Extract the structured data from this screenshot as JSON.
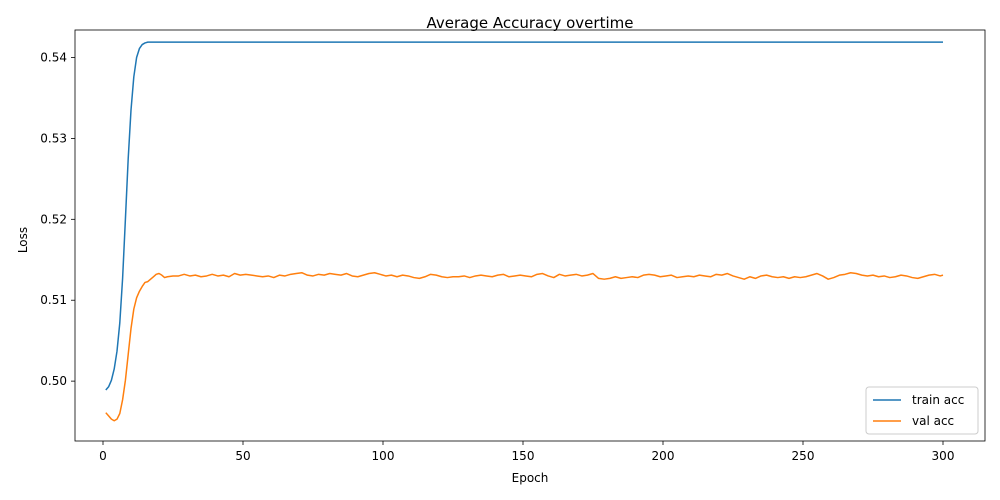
{
  "chart_data": {
    "type": "line",
    "title": "Average Accuracy overtime",
    "xlabel": "Epoch",
    "ylabel": "Loss",
    "xlim": [
      -10,
      315
    ],
    "ylim": [
      0.4926,
      0.5434
    ],
    "xticks": [
      0,
      50,
      100,
      150,
      200,
      250,
      300
    ],
    "yticks": [
      0.5,
      0.51,
      0.52,
      0.53,
      0.54
    ],
    "ytick_labels": [
      "0.50",
      "0.51",
      "0.52",
      "0.53",
      "0.54"
    ],
    "grid": false,
    "legend": "bottom-right",
    "series": [
      {
        "name": "train acc",
        "color": "#1f77b4",
        "points": [
          [
            1,
            0.4989
          ],
          [
            2,
            0.4993
          ],
          [
            3,
            0.5001
          ],
          [
            4,
            0.5015
          ],
          [
            5,
            0.5037
          ],
          [
            6,
            0.5072
          ],
          [
            7,
            0.5127
          ],
          [
            8,
            0.52
          ],
          [
            9,
            0.5275
          ],
          [
            10,
            0.5335
          ],
          [
            11,
            0.5376
          ],
          [
            12,
            0.54
          ],
          [
            13,
            0.5411
          ],
          [
            14,
            0.5416
          ],
          [
            15,
            0.5418
          ],
          [
            16,
            0.5419
          ],
          [
            300,
            0.5419
          ]
        ]
      },
      {
        "name": "val acc",
        "color": "#ff7f0e",
        "points": [
          [
            1,
            0.4961
          ],
          [
            2,
            0.4957
          ],
          [
            3,
            0.4953
          ],
          [
            4,
            0.4951
          ],
          [
            5,
            0.4953
          ],
          [
            6,
            0.496
          ],
          [
            7,
            0.4977
          ],
          [
            8,
            0.5001
          ],
          [
            9,
            0.5033
          ],
          [
            10,
            0.5065
          ],
          [
            11,
            0.5089
          ],
          [
            12,
            0.5103
          ],
          [
            13,
            0.5111
          ],
          [
            14,
            0.5117
          ],
          [
            15,
            0.5122
          ],
          [
            16,
            0.5123
          ],
          [
            17,
            0.5126
          ],
          [
            18,
            0.5129
          ],
          [
            19,
            0.5132
          ],
          [
            20,
            0.5133
          ],
          [
            21,
            0.5131
          ],
          [
            22,
            0.5128
          ],
          [
            23,
            0.5129
          ],
          [
            25,
            0.513
          ],
          [
            27,
            0.513
          ],
          [
            29,
            0.5132
          ],
          [
            31,
            0.513
          ],
          [
            33,
            0.5131
          ],
          [
            35,
            0.5129
          ],
          [
            37,
            0.513
          ],
          [
            39,
            0.5132
          ],
          [
            41,
            0.513
          ],
          [
            43,
            0.5131
          ],
          [
            45,
            0.5129
          ],
          [
            47,
            0.5133
          ],
          [
            49,
            0.5131
          ],
          [
            51,
            0.5132
          ],
          [
            53,
            0.5131
          ],
          [
            55,
            0.513
          ],
          [
            57,
            0.5129
          ],
          [
            59,
            0.513
          ],
          [
            61,
            0.5128
          ],
          [
            63,
            0.5131
          ],
          [
            65,
            0.513
          ],
          [
            67,
            0.5132
          ],
          [
            69,
            0.5133
          ],
          [
            71,
            0.5134
          ],
          [
            73,
            0.5131
          ],
          [
            75,
            0.513
          ],
          [
            77,
            0.5132
          ],
          [
            79,
            0.5131
          ],
          [
            81,
            0.5133
          ],
          [
            83,
            0.5132
          ],
          [
            85,
            0.5131
          ],
          [
            87,
            0.5133
          ],
          [
            89,
            0.513
          ],
          [
            91,
            0.5129
          ],
          [
            93,
            0.5131
          ],
          [
            95,
            0.5133
          ],
          [
            97,
            0.5134
          ],
          [
            99,
            0.5132
          ],
          [
            101,
            0.513
          ],
          [
            103,
            0.5131
          ],
          [
            105,
            0.5129
          ],
          [
            107,
            0.5131
          ],
          [
            109,
            0.513
          ],
          [
            111,
            0.5128
          ],
          [
            113,
            0.5127
          ],
          [
            115,
            0.5129
          ],
          [
            117,
            0.5132
          ],
          [
            119,
            0.5131
          ],
          [
            121,
            0.5129
          ],
          [
            123,
            0.5128
          ],
          [
            125,
            0.5129
          ],
          [
            127,
            0.5129
          ],
          [
            129,
            0.513
          ],
          [
            131,
            0.5128
          ],
          [
            133,
            0.513
          ],
          [
            135,
            0.5131
          ],
          [
            137,
            0.513
          ],
          [
            139,
            0.5129
          ],
          [
            141,
            0.5131
          ],
          [
            143,
            0.5132
          ],
          [
            145,
            0.5129
          ],
          [
            147,
            0.513
          ],
          [
            149,
            0.5131
          ],
          [
            151,
            0.513
          ],
          [
            153,
            0.5129
          ],
          [
            155,
            0.5132
          ],
          [
            157,
            0.5133
          ],
          [
            159,
            0.513
          ],
          [
            161,
            0.5128
          ],
          [
            163,
            0.5132
          ],
          [
            165,
            0.513
          ],
          [
            167,
            0.5131
          ],
          [
            169,
            0.5132
          ],
          [
            171,
            0.513
          ],
          [
            173,
            0.5131
          ],
          [
            175,
            0.5133
          ],
          [
            177,
            0.5127
          ],
          [
            179,
            0.5126
          ],
          [
            181,
            0.5127
          ],
          [
            183,
            0.5129
          ],
          [
            185,
            0.5127
          ],
          [
            187,
            0.5128
          ],
          [
            189,
            0.5129
          ],
          [
            191,
            0.5128
          ],
          [
            193,
            0.5131
          ],
          [
            195,
            0.5132
          ],
          [
            197,
            0.5131
          ],
          [
            199,
            0.5129
          ],
          [
            201,
            0.513
          ],
          [
            203,
            0.5131
          ],
          [
            205,
            0.5128
          ],
          [
            207,
            0.5129
          ],
          [
            209,
            0.513
          ],
          [
            211,
            0.5129
          ],
          [
            213,
            0.5131
          ],
          [
            215,
            0.513
          ],
          [
            217,
            0.5129
          ],
          [
            219,
            0.5132
          ],
          [
            221,
            0.5131
          ],
          [
            223,
            0.5133
          ],
          [
            225,
            0.513
          ],
          [
            227,
            0.5128
          ],
          [
            229,
            0.5126
          ],
          [
            231,
            0.5129
          ],
          [
            233,
            0.5127
          ],
          [
            235,
            0.513
          ],
          [
            237,
            0.5131
          ],
          [
            239,
            0.5129
          ],
          [
            241,
            0.5128
          ],
          [
            243,
            0.5129
          ],
          [
            245,
            0.5127
          ],
          [
            247,
            0.5129
          ],
          [
            249,
            0.5128
          ],
          [
            251,
            0.5129
          ],
          [
            253,
            0.5131
          ],
          [
            255,
            0.5133
          ],
          [
            257,
            0.513
          ],
          [
            259,
            0.5126
          ],
          [
            261,
            0.5128
          ],
          [
            263,
            0.5131
          ],
          [
            265,
            0.5132
          ],
          [
            267,
            0.5134
          ],
          [
            269,
            0.5133
          ],
          [
            271,
            0.5131
          ],
          [
            273,
            0.513
          ],
          [
            275,
            0.5131
          ],
          [
            277,
            0.5129
          ],
          [
            279,
            0.513
          ],
          [
            281,
            0.5128
          ],
          [
            283,
            0.5129
          ],
          [
            285,
            0.5131
          ],
          [
            287,
            0.513
          ],
          [
            289,
            0.5128
          ],
          [
            291,
            0.5127
          ],
          [
            293,
            0.5129
          ],
          [
            295,
            0.5131
          ],
          [
            297,
            0.5132
          ],
          [
            299,
            0.513
          ],
          [
            300,
            0.5131
          ]
        ]
      }
    ]
  }
}
